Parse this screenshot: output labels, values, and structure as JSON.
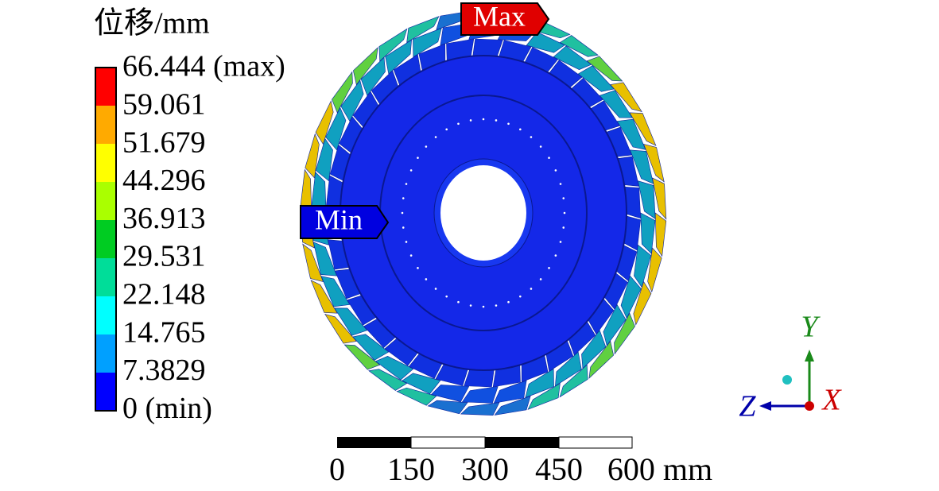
{
  "legend": {
    "title": "位移/mm",
    "labels": [
      "66.444 (max)",
      "59.061",
      "51.679",
      "44.296",
      "36.913",
      "29.531",
      "22.148",
      "14.765",
      "7.3829",
      "0 (min)"
    ]
  },
  "tags": {
    "max": "Max",
    "min": "Min"
  },
  "scale_bar": {
    "labels": [
      "0",
      "150",
      "300",
      "450",
      "600 mm"
    ]
  },
  "triad": {
    "y": "Y",
    "z": "Z",
    "x": "X"
  }
}
